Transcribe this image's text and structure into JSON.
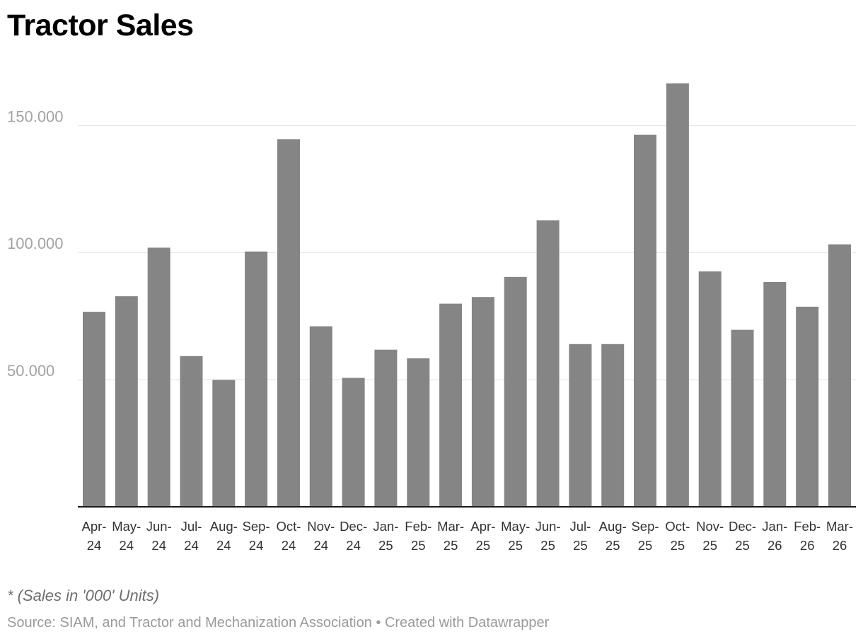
{
  "chart_data": {
    "type": "bar",
    "title": "Tractor Sales",
    "xlabel": "",
    "ylabel": "",
    "categories": [
      "Apr-24",
      "May-24",
      "Jun-24",
      "Jul-24",
      "Aug-24",
      "Sep-24",
      "Oct-24",
      "Nov-24",
      "Dec-24",
      "Jan-25",
      "Feb-25",
      "Mar-25",
      "Apr-25",
      "May-25",
      "Jun-25",
      "Jul-25",
      "Aug-25",
      "Sep-25",
      "Oct-25",
      "Nov-25",
      "Dec-25",
      "Jan-26",
      "Feb-26",
      "Mar-26"
    ],
    "values": [
      76700,
      82800,
      101900,
      59300,
      49900,
      100400,
      144500,
      71000,
      50700,
      61800,
      58400,
      79900,
      82500,
      90400,
      112700,
      64000,
      64000,
      146300,
      166500,
      92600,
      69600,
      88400,
      78700,
      103200
    ],
    "ylim": [
      0,
      166500
    ],
    "yticks": [
      50000,
      100000,
      150000
    ],
    "ytick_labels": [
      "50.000",
      "100.000",
      "150.000"
    ],
    "grid": true,
    "bar_color": "#858585",
    "note": "* (Sales in '000' Units)",
    "source": "Source: SIAM, and Tractor and Mechanization Association • Created with Datawrapper"
  }
}
